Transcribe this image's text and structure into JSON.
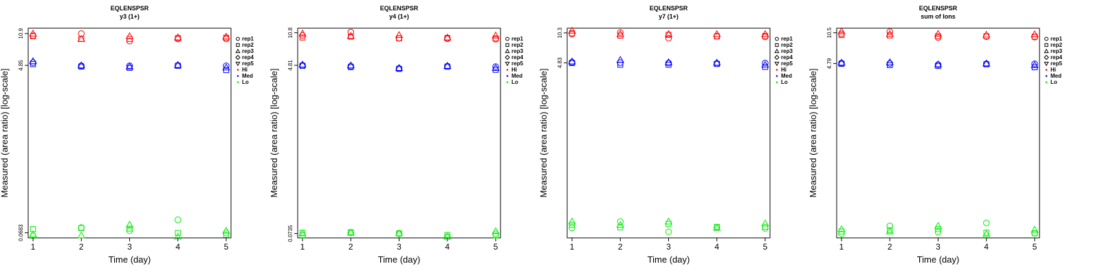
{
  "chart_data": [
    {
      "type": "scatter",
      "title": "EQLENSPSR",
      "subtitle": "y3 (1+)",
      "xlabel": "Time (day)",
      "ylabel": "Measured (area ratio) [log-scale]",
      "y_scale": "log",
      "ylim": [
        0.06,
        12.5
      ],
      "y_ticks": [
        0.0683,
        4.85,
        10.9
      ],
      "y_tick_labels": [
        "0.0683",
        "4.85",
        "10.9"
      ],
      "x_ticks": [
        1,
        2,
        3,
        4,
        5
      ],
      "legend_position": "right",
      "points": {
        "Hi": {
          "rep1": [
            10.3,
            10.9,
            9.0,
            9.5,
            9.5
          ],
          "rep2": [
            10.2,
            9.5,
            9.5,
            9.7,
            9.8
          ],
          "rep3": [
            10.9,
            9.5,
            10.2,
            9.9,
            10.1
          ],
          "rep4": [
            10.5,
            10.0,
            9.8,
            9.8,
            9.9
          ],
          "rep5": [
            10.4,
            10.1,
            9.9,
            9.6,
            9.7
          ]
        },
        "Med": {
          "rep1": [
            5.2,
            4.8,
            4.8,
            4.85,
            4.8
          ],
          "rep2": [
            5.0,
            4.7,
            4.55,
            4.8,
            4.3
          ],
          "rep3": [
            5.4,
            4.85,
            4.7,
            4.9,
            4.6
          ],
          "rep4": [
            5.1,
            4.75,
            4.6,
            4.85,
            4.5
          ],
          "rep5": [
            5.0,
            4.7,
            4.6,
            4.8,
            4.55
          ]
        },
        "Lo": {
          "rep1": [
            0.063,
            0.078,
            0.072,
            0.095,
            0.068
          ],
          "rep2": [
            0.075,
            0.077,
            0.076,
            0.068,
            0.065
          ],
          "rep3": [
            0.066,
            0.064,
            0.084,
            0.062,
            0.072
          ],
          "rep4": [
            0.068,
            0.074,
            0.078,
            0.07,
            0.068
          ],
          "rep5": [
            0.065,
            0.072,
            0.073,
            0.066,
            0.067
          ]
        }
      }
    },
    {
      "type": "scatter",
      "title": "EQLENSPSR",
      "subtitle": "y4 (1+)",
      "xlabel": "Time (day)",
      "ylabel": "Measured (area ratio) [log-scale]",
      "y_scale": "log",
      "ylim": [
        0.066,
        12.1
      ],
      "y_ticks": [
        0.0735,
        4.81,
        10.8
      ],
      "y_tick_labels": [
        "0.0735",
        "4.81",
        "10.8"
      ],
      "x_ticks": [
        1,
        2,
        3,
        4,
        5
      ],
      "legend_position": "right",
      "points": {
        "Hi": {
          "rep1": [
            10.1,
            11.0,
            9.4,
            9.3,
            9.2
          ],
          "rep2": [
            9.6,
            9.8,
            9.4,
            9.5,
            9.4
          ],
          "rep3": [
            10.6,
            10.0,
            10.2,
            9.6,
            10.1
          ],
          "rep4": [
            10.2,
            9.9,
            9.8,
            9.7,
            9.8
          ],
          "rep5": [
            10.3,
            10.0,
            9.7,
            9.4,
            9.6
          ]
        },
        "Med": {
          "rep1": [
            4.8,
            4.7,
            4.45,
            4.7,
            4.65
          ],
          "rep2": [
            4.75,
            4.6,
            4.4,
            4.65,
            4.3
          ],
          "rep3": [
            4.9,
            4.8,
            4.5,
            4.75,
            4.5
          ],
          "rep4": [
            4.8,
            4.7,
            4.45,
            4.7,
            4.45
          ],
          "rep5": [
            4.75,
            4.65,
            4.45,
            4.7,
            4.4
          ]
        },
        "Lo": {
          "rep1": [
            0.07,
            0.075,
            0.073,
            0.068,
            0.073
          ],
          "rep2": [
            0.075,
            0.076,
            0.074,
            0.071,
            0.07
          ],
          "rep3": [
            0.074,
            0.075,
            0.074,
            0.068,
            0.078
          ],
          "rep4": [
            0.074,
            0.076,
            0.075,
            0.07,
            0.072
          ],
          "rep5": [
            0.073,
            0.074,
            0.073,
            0.069,
            0.071
          ]
        }
      }
    },
    {
      "type": "scatter",
      "title": "EQLENSPSR",
      "subtitle": "y7 (1+)",
      "xlabel": "Time (day)",
      "ylabel": "Measured (area ratio) [log-scale]",
      "y_scale": "log",
      "ylim": [
        0.0575,
        11.6
      ],
      "y_ticks": [
        4.83,
        10.3
      ],
      "y_tick_labels": [
        "4.83",
        "10.3"
      ],
      "x_ticks": [
        1,
        2,
        3,
        4,
        5
      ],
      "legend_position": "right",
      "points": {
        "Hi": {
          "rep1": [
            10.0,
            10.4,
            9.0,
            9.5,
            9.3
          ],
          "rep2": [
            10.2,
            9.6,
            9.8,
            9.4,
            9.5
          ],
          "rep3": [
            10.9,
            10.0,
            10.0,
            10.0,
            10.0
          ],
          "rep4": [
            10.3,
            9.9,
            9.8,
            9.7,
            9.6
          ],
          "rep5": [
            10.2,
            9.8,
            9.7,
            9.6,
            9.6
          ]
        },
        "Med": {
          "rep1": [
            4.9,
            4.85,
            4.8,
            4.75,
            4.8
          ],
          "rep2": [
            4.8,
            4.6,
            4.6,
            4.7,
            4.35
          ],
          "rep3": [
            5.0,
            5.2,
            4.9,
            4.85,
            4.6
          ],
          "rep4": [
            4.85,
            4.8,
            4.7,
            4.75,
            4.5
          ],
          "rep5": [
            4.8,
            4.75,
            4.65,
            4.7,
            4.45
          ]
        },
        "Lo": {
          "rep1": [
            0.074,
            0.087,
            0.067,
            0.075,
            0.073
          ],
          "rep2": [
            0.08,
            0.075,
            0.082,
            0.076,
            0.076
          ],
          "rep3": [
            0.087,
            0.08,
            0.087,
            0.074,
            0.083
          ],
          "rep4": [
            0.08,
            0.079,
            0.078,
            0.075,
            0.076
          ],
          "rep5": [
            0.079,
            0.078,
            0.077,
            0.075,
            0.075
          ]
        }
      }
    },
    {
      "type": "scatter",
      "title": "EQLENSPSR",
      "subtitle": "sum of Ions",
      "xlabel": "Time (day)",
      "ylabel": "Measured (area ratio) [log-scale]",
      "y_scale": "log",
      "ylim": [
        0.056,
        11.8
      ],
      "y_ticks": [
        4.79,
        10.5
      ],
      "y_tick_labels": [
        "4.79",
        "10.5"
      ],
      "x_ticks": [
        1,
        2,
        3,
        4,
        5
      ],
      "legend_position": "right",
      "points": {
        "Hi": {
          "rep1": [
            10.2,
            10.8,
            9.3,
            9.5,
            9.4
          ],
          "rep2": [
            9.9,
            9.8,
            9.6,
            9.6,
            9.5
          ],
          "rep3": [
            10.9,
            10.2,
            10.2,
            10.0,
            10.1
          ],
          "rep4": [
            10.3,
            10.0,
            9.8,
            9.7,
            9.7
          ],
          "rep5": [
            10.2,
            9.9,
            9.7,
            9.6,
            9.6
          ]
        },
        "Med": {
          "rep1": [
            4.85,
            4.8,
            4.65,
            4.75,
            4.75
          ],
          "rep2": [
            4.75,
            4.6,
            4.5,
            4.7,
            4.35
          ],
          "rep3": [
            4.9,
            4.95,
            4.7,
            4.8,
            4.6
          ],
          "rep4": [
            4.8,
            4.75,
            4.6,
            4.75,
            4.5
          ],
          "rep5": [
            4.8,
            4.7,
            4.55,
            4.7,
            4.45
          ]
        },
        "Lo": {
          "rep1": [
            0.062,
            0.076,
            0.065,
            0.082,
            0.063
          ],
          "rep2": [
            0.066,
            0.068,
            0.07,
            0.064,
            0.063
          ],
          "rep3": [
            0.07,
            0.066,
            0.076,
            0.062,
            0.069
          ],
          "rep4": [
            0.068,
            0.07,
            0.071,
            0.065,
            0.066
          ],
          "rep5": [
            0.066,
            0.068,
            0.069,
            0.064,
            0.065
          ]
        }
      }
    }
  ],
  "legend": {
    "replicates": [
      {
        "key": "rep1",
        "label": "rep1",
        "marker": "circle"
      },
      {
        "key": "rep2",
        "label": "rep2",
        "marker": "square"
      },
      {
        "key": "rep3",
        "label": "rep3",
        "marker": "triangle-up"
      },
      {
        "key": "rep4",
        "label": "rep4",
        "marker": "diamond"
      },
      {
        "key": "rep5",
        "label": "rep5",
        "marker": "triangle-down"
      }
    ],
    "groups": [
      {
        "key": "Hi",
        "label": "Hi",
        "color": "#ff0000"
      },
      {
        "key": "Med",
        "label": "Med",
        "color": "#0000ff"
      },
      {
        "key": "Lo",
        "label": "Lo",
        "color": "#00ee00"
      }
    ],
    "shown_markers": [
      "rep1",
      "rep2",
      "rep3"
    ]
  }
}
